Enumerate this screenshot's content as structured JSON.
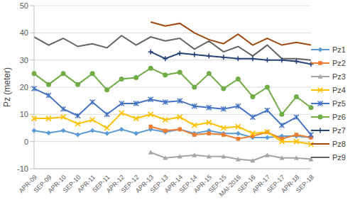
{
  "chart_data": {
    "type": "line",
    "y_label": "Pz (meter)",
    "categories": [
      "APR-09",
      "SEP-09",
      "APR-10",
      "SEP-10",
      "APR-11",
      "SEP-11",
      "APR-12",
      "SEP-12",
      "APR-13",
      "SEP-13",
      "APR-14",
      "SEP-14",
      "APR-15",
      "SEP-15",
      "MAI-2016",
      "SEP-16",
      "APR-17",
      "SEP-17",
      "APR-18",
      "SEP-18"
    ],
    "series": [
      {
        "name": "Pz1",
        "color": "#5b9bd5",
        "marker": "diamond",
        "values": [
          4,
          3.2,
          4,
          2.5,
          4,
          3,
          4.5,
          3,
          4.5,
          3.5,
          4.5,
          3,
          4,
          3,
          3,
          1.5,
          1.5,
          2,
          2,
          1.5
        ]
      },
      {
        "name": "Pz2",
        "color": "#ed7d31",
        "marker": "square",
        "values": [
          null,
          null,
          null,
          null,
          null,
          null,
          null,
          null,
          5.5,
          4,
          4.5,
          2.5,
          3,
          2.5,
          1,
          2,
          3.5,
          1,
          2.5,
          1.5
        ]
      },
      {
        "name": "Pz3",
        "color": "#a5a5a5",
        "marker": "triangle",
        "values": [
          null,
          null,
          null,
          null,
          null,
          null,
          null,
          null,
          -4,
          -6,
          -5.5,
          -5,
          -5.5,
          -5.5,
          -6.5,
          -7,
          -5,
          -6,
          -6,
          -6.5
        ]
      },
      {
        "name": "Pz4",
        "color": "#ffc000",
        "marker": "x",
        "values": [
          8.5,
          8.5,
          9,
          6.5,
          8,
          5,
          10.5,
          8.5,
          10,
          8,
          9,
          6,
          7,
          5,
          5.5,
          3,
          3.5,
          0,
          0,
          -1
        ]
      },
      {
        "name": "Pz5",
        "color": "#4472c4",
        "marker": "star",
        "values": [
          19.5,
          17,
          12,
          9.5,
          14.5,
          10,
          14,
          14,
          15.5,
          14.5,
          15,
          13,
          12.5,
          12,
          13,
          9,
          11.5,
          6,
          9,
          2.5
        ]
      },
      {
        "name": "Pz6",
        "color": "#70ad47",
        "marker": "circle",
        "values": [
          25,
          21,
          25,
          21,
          25,
          19,
          23,
          23.5,
          27,
          24.5,
          25.5,
          20,
          25,
          19.5,
          23,
          16.5,
          20,
          10,
          16.5,
          12.5
        ]
      },
      {
        "name": "Pz7",
        "color": "#264478",
        "marker": "plus",
        "values": [
          null,
          null,
          null,
          null,
          null,
          null,
          null,
          null,
          33,
          30.5,
          32.5,
          32,
          31.5,
          31,
          30.5,
          30.5,
          30,
          30,
          29.5,
          28.5
        ]
      },
      {
        "name": "Pz8",
        "color": "#9e480e",
        "marker": "none",
        "values": [
          null,
          null,
          null,
          null,
          null,
          null,
          null,
          null,
          44,
          42.5,
          43.5,
          40,
          37.5,
          36,
          39.5,
          35.5,
          38,
          35.5,
          36.5,
          35.5
        ]
      },
      {
        "name": "Pz9",
        "color": "#636363",
        "marker": "none",
        "values": [
          38.5,
          35.5,
          38,
          35,
          36,
          34.5,
          39,
          35.5,
          38.5,
          37,
          38,
          34,
          37,
          33,
          35,
          31.5,
          35.5,
          30.5,
          30.5,
          30
        ]
      }
    ],
    "ylim": [
      -10,
      50
    ],
    "yticks": [
      -10,
      0,
      10,
      20,
      30,
      40,
      50
    ],
    "grid": true,
    "legend": "right"
  }
}
